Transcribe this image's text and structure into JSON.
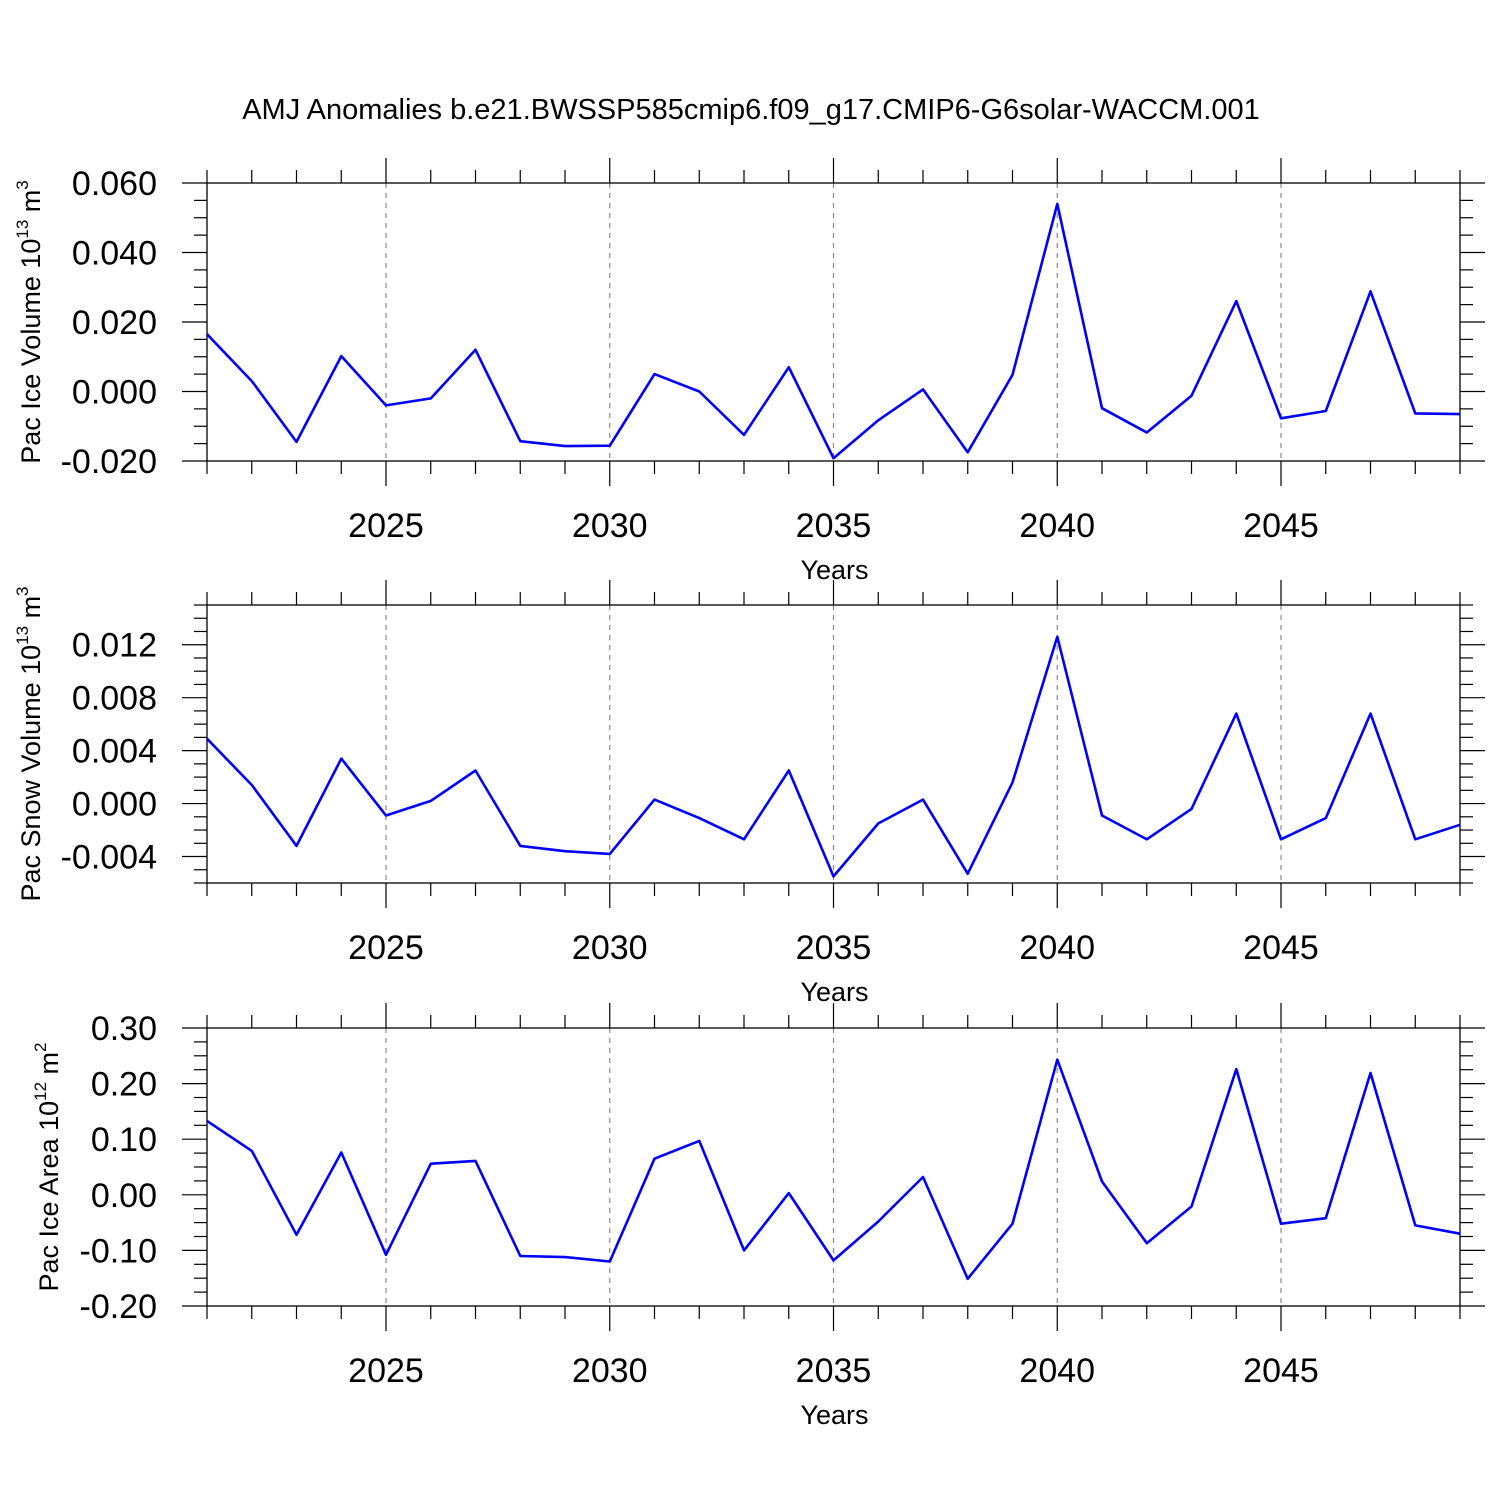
{
  "title": "AMJ Anomalies b.e21.BWSSP585cmip6.f09_g17.CMIP6-G6solar-WACCM.001",
  "colors": {
    "series": "#0000ff",
    "grid": "#888888",
    "axes": "#000000"
  },
  "chart_data": [
    {
      "type": "line",
      "ylabel": {
        "text": "Pac Ice Volume 10",
        "sup": "13",
        "unit": " m",
        "unit_sup": "3"
      },
      "xlabel": "Years",
      "xlim": [
        2021,
        2049
      ],
      "ylim": [
        -0.02,
        0.06
      ],
      "x_ticks": [
        2025,
        2030,
        2035,
        2040,
        2045
      ],
      "x_tick_labels": [
        "2025",
        "2030",
        "2035",
        "2040",
        "2045"
      ],
      "y_ticks": [
        -0.02,
        0.0,
        0.02,
        0.04,
        0.06
      ],
      "y_tick_labels": [
        "-0.020",
        "0.000",
        "0.020",
        "0.040",
        "0.060"
      ],
      "grid": "vertical dashed at major x ticks",
      "x": [
        2021,
        2022,
        2023,
        2024,
        2025,
        2026,
        2027,
        2028,
        2029,
        2030,
        2031,
        2032,
        2033,
        2034,
        2035,
        2036,
        2037,
        2038,
        2039,
        2040,
        2041,
        2042,
        2043,
        2044,
        2045,
        2046,
        2047,
        2048,
        2049
      ],
      "series": [
        {
          "values": [
            0.0165,
            0.003,
            -0.0145,
            0.0102,
            -0.004,
            -0.002,
            0.012,
            -0.0143,
            -0.0157,
            -0.0156,
            0.005,
            0.0,
            -0.0125,
            0.007,
            -0.0192,
            -0.0083,
            0.0006,
            -0.0175,
            0.0048,
            0.054,
            -0.0048,
            -0.0118,
            -0.0012,
            0.026,
            -0.0077,
            -0.0056,
            0.0288,
            -0.0063,
            -0.0065
          ]
        }
      ]
    },
    {
      "type": "line",
      "ylabel": {
        "text": "Pac Snow Volume 10",
        "sup": "13",
        "unit": " m",
        "unit_sup": "3"
      },
      "xlabel": "Years",
      "xlim": [
        2021,
        2049
      ],
      "ylim": [
        -0.006,
        0.015
      ],
      "x_ticks": [
        2025,
        2030,
        2035,
        2040,
        2045
      ],
      "x_tick_labels": [
        "2025",
        "2030",
        "2035",
        "2040",
        "2045"
      ],
      "y_ticks": [
        -0.004,
        0.0,
        0.004,
        0.008,
        0.012
      ],
      "y_tick_labels": [
        "-0.004",
        "0.000",
        "0.004",
        "0.008",
        "0.012"
      ],
      "grid": "vertical dashed at major x ticks",
      "x": [
        2021,
        2022,
        2023,
        2024,
        2025,
        2026,
        2027,
        2028,
        2029,
        2030,
        2031,
        2032,
        2033,
        2034,
        2035,
        2036,
        2037,
        2038,
        2039,
        2040,
        2041,
        2042,
        2043,
        2044,
        2045,
        2046,
        2047,
        2048,
        2049
      ],
      "series": [
        {
          "values": [
            0.0049,
            0.0014,
            -0.0032,
            0.0034,
            -0.0009,
            0.0002,
            0.0025,
            -0.0032,
            -0.0036,
            -0.0038,
            0.0003,
            -0.0011,
            -0.0027,
            0.0025,
            -0.0055,
            -0.0015,
            0.0003,
            -0.0053,
            0.0016,
            0.0126,
            -0.0009,
            -0.0027,
            -0.0004,
            0.0068,
            -0.0027,
            -0.0011,
            0.0068,
            -0.0027,
            -0.0016
          ]
        }
      ]
    },
    {
      "type": "line",
      "ylabel": {
        "text": "Pac Ice Area 10",
        "sup": "12",
        "unit": " m",
        "unit_sup": "2"
      },
      "xlabel": "Years",
      "xlim": [
        2021,
        2049
      ],
      "ylim": [
        -0.2,
        0.3
      ],
      "x_ticks": [
        2025,
        2030,
        2035,
        2040,
        2045
      ],
      "x_tick_labels": [
        "2025",
        "2030",
        "2035",
        "2040",
        "2045"
      ],
      "y_ticks": [
        -0.2,
        -0.1,
        0.0,
        0.1,
        0.2,
        0.3
      ],
      "y_tick_labels": [
        "-0.20",
        "-0.10",
        "0.00",
        "0.10",
        "0.20",
        "0.30"
      ],
      "grid": "vertical dashed at major x ticks",
      "x": [
        2021,
        2022,
        2023,
        2024,
        2025,
        2026,
        2027,
        2028,
        2029,
        2030,
        2031,
        2032,
        2033,
        2034,
        2035,
        2036,
        2037,
        2038,
        2039,
        2040,
        2041,
        2042,
        2043,
        2044,
        2045,
        2046,
        2047,
        2048,
        2049
      ],
      "series": [
        {
          "values": [
            0.133,
            0.079,
            -0.072,
            0.076,
            -0.108,
            0.056,
            0.061,
            -0.11,
            -0.112,
            -0.12,
            0.065,
            0.097,
            -0.1,
            0.003,
            -0.118,
            -0.048,
            0.032,
            -0.151,
            -0.052,
            0.243,
            0.024,
            -0.087,
            -0.021,
            0.226,
            -0.052,
            -0.042,
            0.219,
            -0.055,
            -0.07
          ]
        }
      ]
    }
  ]
}
